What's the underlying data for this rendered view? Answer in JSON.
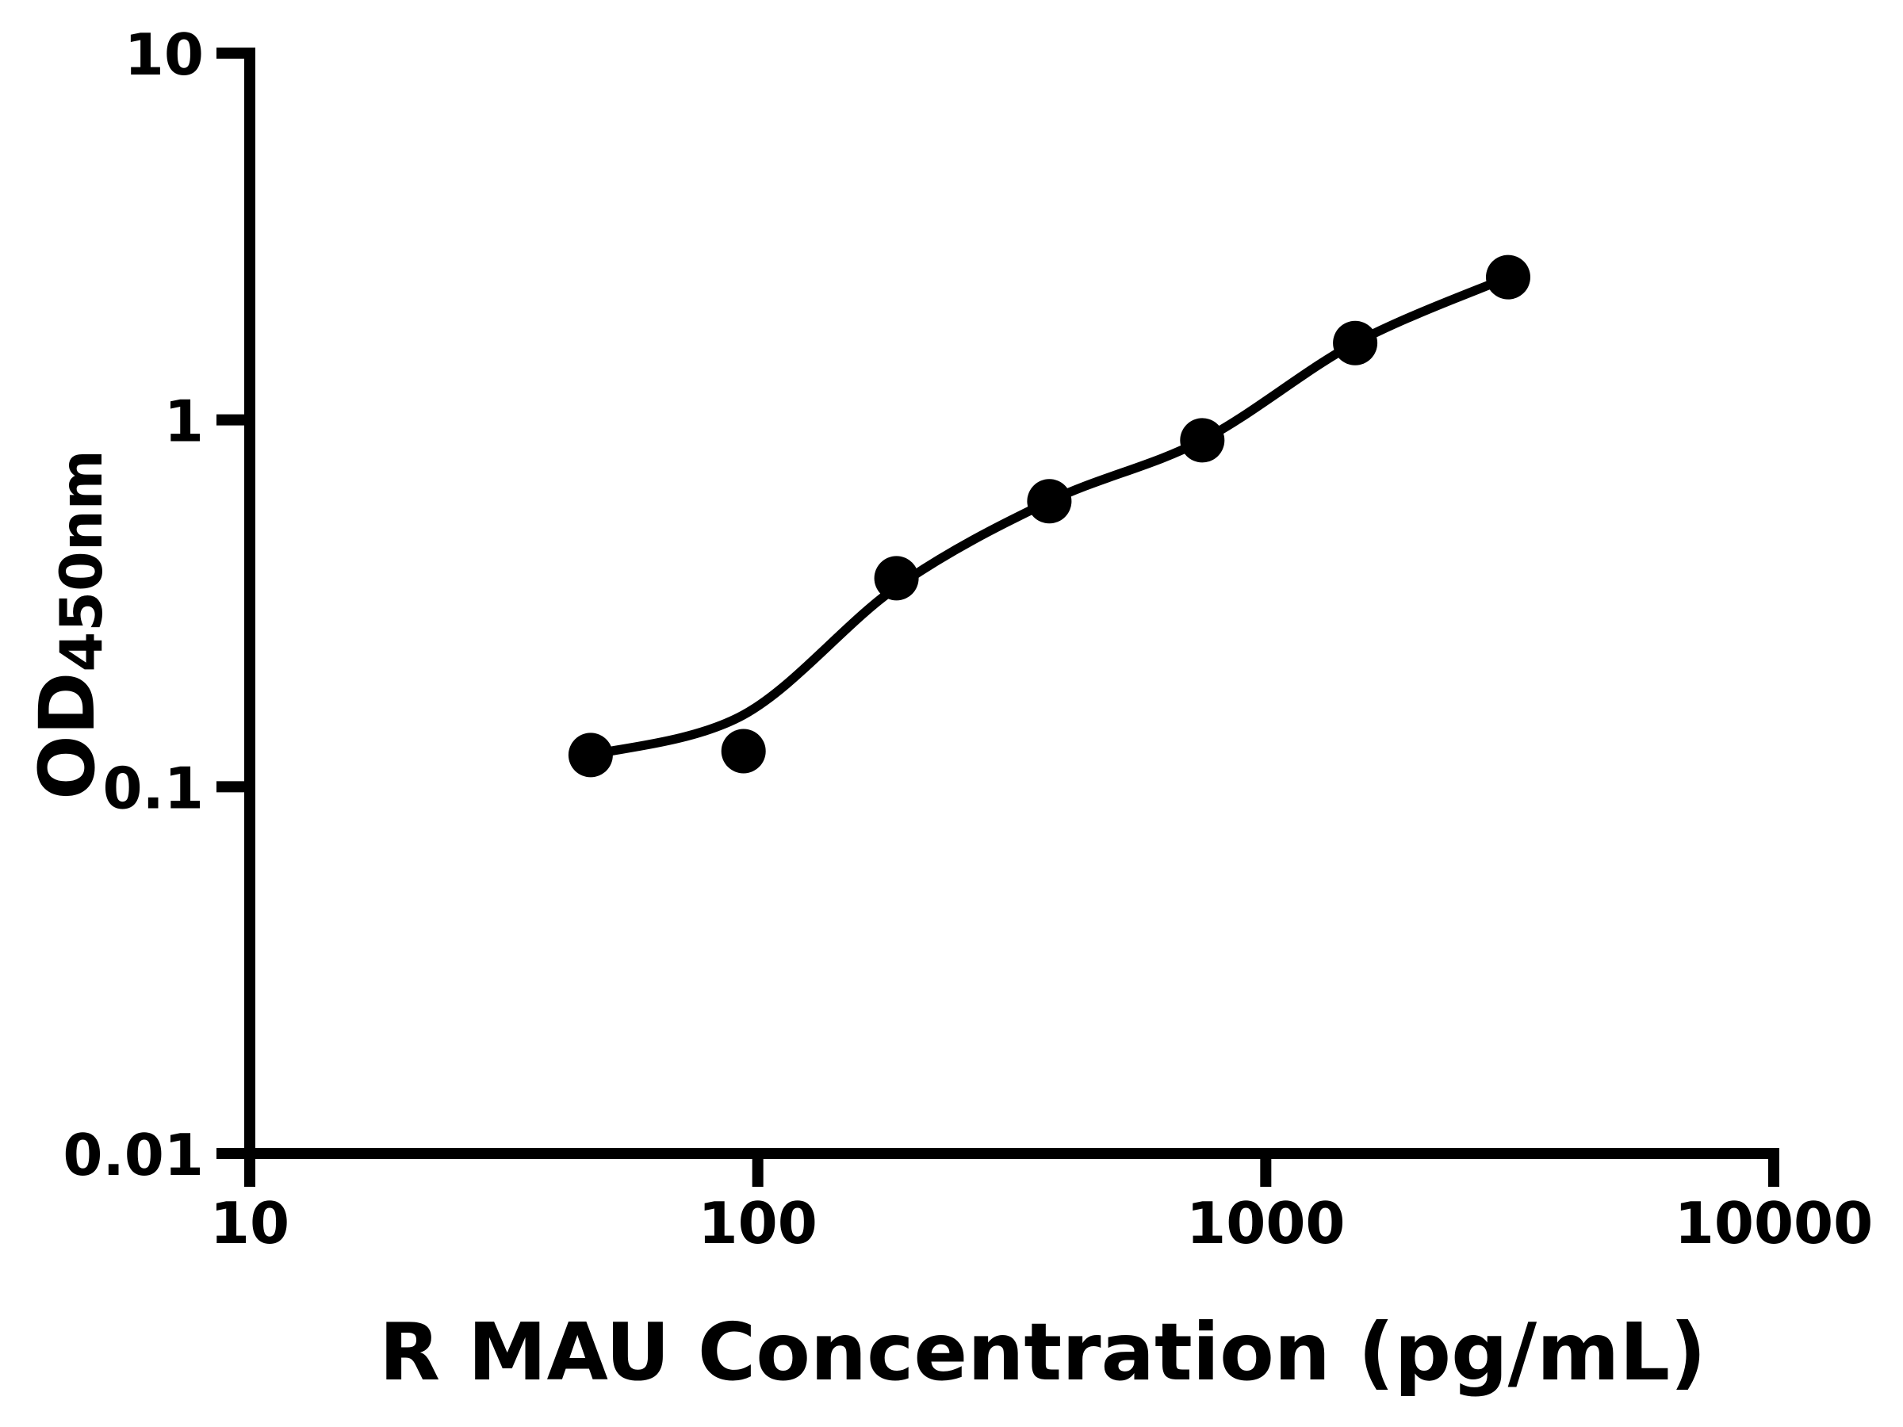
{
  "figure": {
    "background_color": "#ffffff",
    "ink_color": "#000000"
  },
  "chart_data": {
    "type": "scatter",
    "title": "",
    "xlabel": "R MAU Concentration (pg/mL)",
    "ylabel": "OD450nm",
    "ylabel_main": "OD",
    "ylabel_sub": "450nm",
    "x_scale": "log",
    "y_scale": "log",
    "xlim": [
      10,
      10000
    ],
    "ylim": [
      0.01,
      10
    ],
    "grid": false,
    "legend_position": "none",
    "x_ticks": {
      "values": [
        10,
        100,
        1000,
        10000
      ],
      "labels": [
        "10",
        "100",
        "1000",
        "10000"
      ]
    },
    "y_ticks": {
      "values": [
        0.01,
        0.1,
        1,
        10
      ],
      "labels": [
        "0.01",
        "0.1",
        "1",
        "10"
      ]
    },
    "series": [
      {
        "name": "standard-points",
        "type": "scatter",
        "marker": "circle",
        "color": "#000000",
        "points": [
          [
            46.88,
            0.122
          ],
          [
            93.75,
            0.125
          ],
          [
            187.5,
            0.37
          ],
          [
            375,
            0.6
          ],
          [
            750,
            0.88
          ],
          [
            1500,
            1.62
          ],
          [
            3000,
            2.45
          ]
        ]
      }
    ],
    "fit_curve": {
      "name": "standard-curve-fit",
      "color": "#000000",
      "anchors": [
        [
          46.88,
          0.122
        ],
        [
          93.75,
          0.157
        ],
        [
          187.5,
          0.35
        ],
        [
          375,
          0.6
        ],
        [
          750,
          0.88
        ],
        [
          1500,
          1.62
        ],
        [
          3000,
          2.45
        ]
      ]
    }
  }
}
